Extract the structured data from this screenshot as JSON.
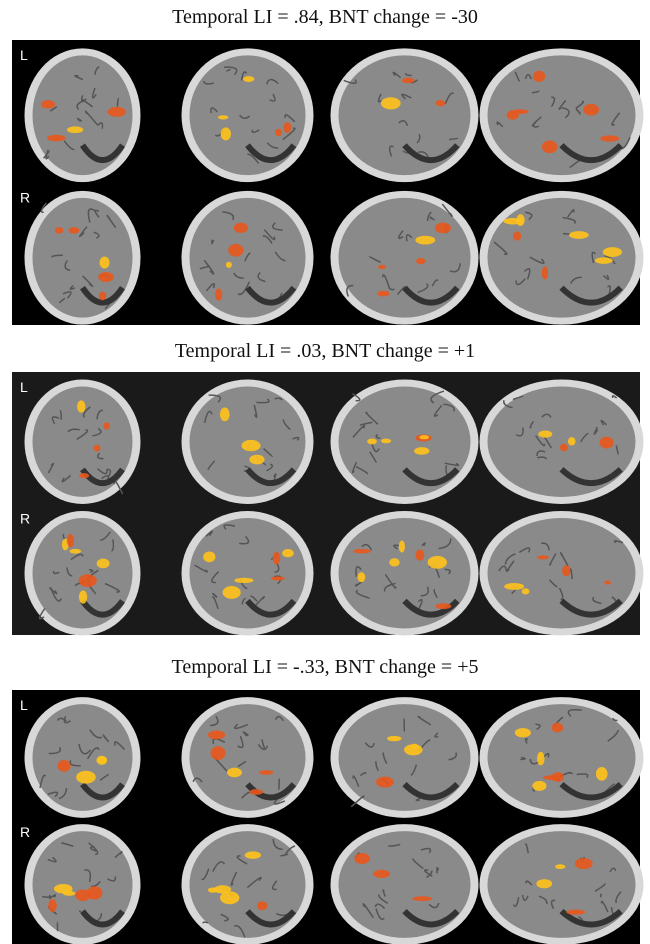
{
  "panels": [
    {
      "title": "Temporal LI = .84, BNT change = -30",
      "rows": [
        "L",
        "R"
      ]
    },
    {
      "title": "Temporal LI = .03, BNT change = +1",
      "rows": [
        "L",
        "R"
      ]
    },
    {
      "title": "Temporal LI = -.33, BNT change = +5",
      "rows": [
        "L",
        "R"
      ]
    }
  ]
}
